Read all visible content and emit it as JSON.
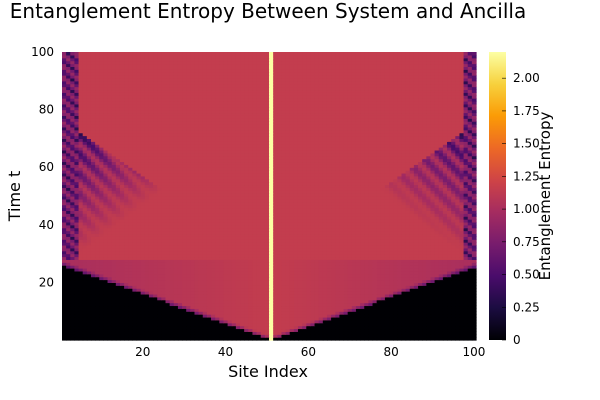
{
  "chart_data": {
    "type": "heatmap",
    "title": "Entanglement Entropy Between System and Ancilla",
    "xlabel": "Site Index",
    "ylabel": "Time t",
    "xlim": [
      1,
      100
    ],
    "ylim": [
      0,
      100
    ],
    "x_ticks": [
      20,
      40,
      60,
      80,
      100
    ],
    "y_ticks": [
      20,
      40,
      60,
      80,
      100
    ],
    "colorbar": {
      "label": "Entanglement Entropy",
      "range": [
        0,
        2.2
      ],
      "ticks": [
        0,
        0.25,
        0.5,
        0.75,
        1.0,
        1.25,
        1.5,
        1.75,
        2.0
      ],
      "tick_labels": [
        "0",
        "0.25",
        "0.50",
        "0.75",
        "1.00",
        "1.25",
        "1.50",
        "1.75",
        "2.00"
      ],
      "colormap": "inferno",
      "colors": [
        "#000004",
        "#1b0c41",
        "#4a0c6b",
        "#781c6d",
        "#a52c60",
        "#cf4446",
        "#ed6925",
        "#fb9b06",
        "#f7d13d",
        "#fcffa4"
      ]
    },
    "grid": false,
    "source_site": 51,
    "source_site_value": 2.2,
    "light_cone_arrival_time": 26,
    "bulk_value_inside_cone": 1.15,
    "value_outside_cone": 0.0
  }
}
